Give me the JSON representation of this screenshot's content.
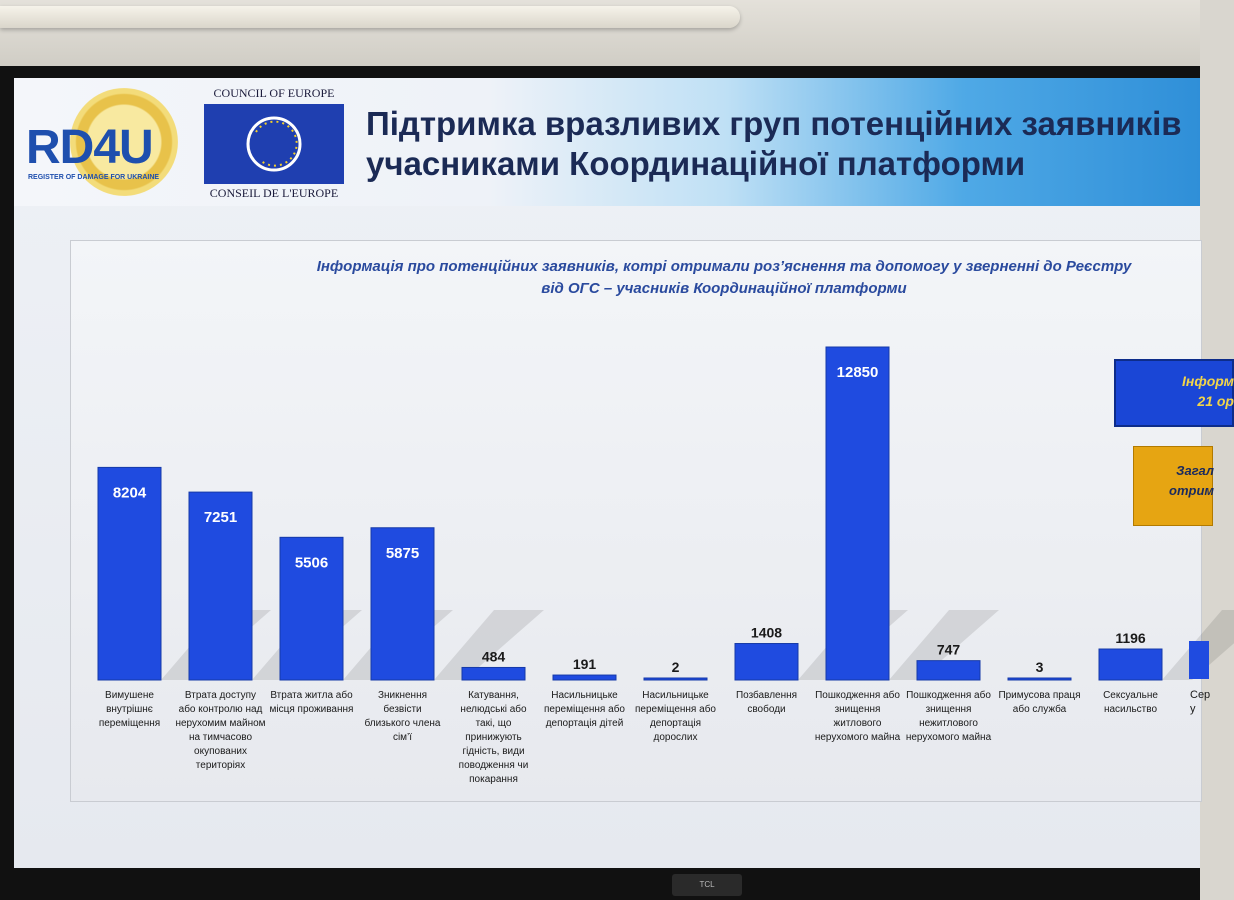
{
  "logos": {
    "rd4u": "RD4U",
    "rd4u_sub": "REGISTER OF DAMAGE FOR UKRAINE",
    "coe_top": "COUNCIL OF EUROPE",
    "coe_bottom": "CONSEIL DE L'EUROPE"
  },
  "slide": {
    "title": "Підтримка вразливих груп потенційних заявників\nучасниками Координаційної платформи"
  },
  "info_box": {
    "text": "Інформ\n21 ор"
  },
  "total_box": {
    "text": "Загал\nотрим"
  },
  "partial_category": {
    "label": "Сер\nу"
  },
  "colors": {
    "bar": "#1f4be0",
    "info_box": "#1a46d6",
    "total_box": "#e6a512",
    "title": "#1b2a55"
  },
  "tv_brand": "TCL",
  "chart_data": {
    "type": "bar",
    "title": "Інформація про потенційних заявників, котрі отримали роз’яснення та допомогу у зверненні до Реєстру\nвід ОГС – учасників Координаційної платформи",
    "categories": [
      "Вимушене внутрішнє переміщення",
      "Втрата доступу або контролю над нерухомим майном на тимчасово окупованих територіях",
      "Втрата житла або місця проживання",
      "Зникнення безвісти близького члена сім’ї",
      "Катування, нелюдські або такі, що принижують гідність, види поводження чи покарання",
      "Насильницьке переміщення або депортація дітей",
      "Насильницьке переміщення або депортація дорослих",
      "Позбавлення свободи",
      "Пошкодження або знищення житлового нерухомого майна",
      "Пошкодження або знищення нежитлового нерухомого майна",
      "Примусова праця або служба",
      "Сексуальне насильство"
    ],
    "values": [
      8204,
      7251,
      5506,
      5875,
      484,
      191,
      2,
      1408,
      12850,
      747,
      3,
      1196
    ],
    "ylim": [
      0,
      12850
    ],
    "grid": false,
    "legend": "none"
  }
}
